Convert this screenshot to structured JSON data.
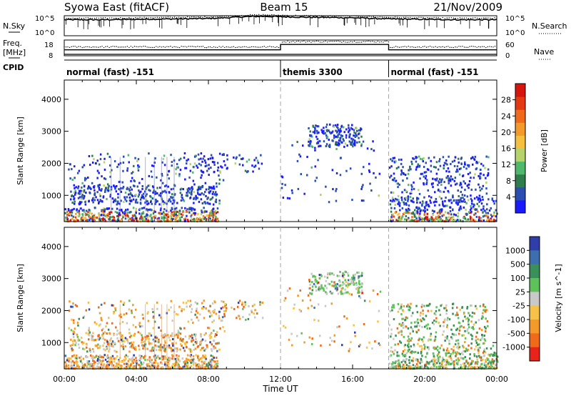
{
  "header": {
    "station": "Syowa East (fitACF)",
    "beam": "Beam 15",
    "date": "21/Nov/2009"
  },
  "left_labels": {
    "nsky": "N.Sky",
    "freq": "Freq.",
    "freq_unit": "[MHz]",
    "cpid": "CPID"
  },
  "right_labels": {
    "nsearch": "N.Search",
    "nave": "Nave"
  },
  "chart_data": [
    {
      "type": "line",
      "name": "noise-panel",
      "series": [
        {
          "name": "N.Sky"
        },
        {
          "name": "N.Search"
        }
      ],
      "y_ticks_left": [
        "10^5",
        "10^0"
      ],
      "y_ticks_right": [
        "10^5",
        "10^0"
      ],
      "profile_x_hours": [
        0,
        2,
        4,
        6,
        8,
        9,
        10,
        11,
        12,
        13,
        14,
        15,
        16,
        17,
        18,
        20,
        22,
        24
      ],
      "profile_level": [
        0.8,
        0.8,
        0.82,
        0.84,
        0.86,
        0.9,
        0.95,
        0.97,
        0.95,
        0.93,
        0.92,
        0.91,
        0.9,
        0.87,
        0.84,
        0.82,
        0.8,
        0.8
      ]
    },
    {
      "type": "line",
      "name": "frequency-panel",
      "series": [
        {
          "name": "Freq."
        },
        {
          "name": "Nave"
        }
      ],
      "y_ticks_left": [
        "18",
        "8"
      ],
      "y_ticks_right": [
        "60",
        "0"
      ],
      "freq_step_hours": [
        0,
        12,
        18,
        24
      ],
      "freq_step_level": [
        0.38,
        0.72,
        0.38
      ]
    },
    {
      "type": "table",
      "name": "cpid-panel",
      "segments": [
        {
          "start": 0,
          "end": 12,
          "label": "normal (fast) -151"
        },
        {
          "start": 12,
          "end": 18,
          "label": "themis 3300"
        },
        {
          "start": 18,
          "end": 24,
          "label": "normal (fast) -151"
        }
      ]
    },
    {
      "type": "heatmap",
      "name": "power",
      "ylabel": "Slant Range [km]",
      "yticks": [
        1000,
        2000,
        3000,
        4000
      ],
      "ylim": [
        180,
        4600
      ],
      "xlim": [
        0,
        24
      ],
      "colorbar_label": "Power [dB]",
      "colorbar_ticks": [
        4,
        8,
        12,
        16,
        20,
        24,
        28
      ],
      "colorbar_range": [
        0,
        32
      ],
      "colorbar_colors": [
        "#1a1aff",
        "#2a4fb0",
        "#2e7d4a",
        "#4fb86a",
        "#b5d36a",
        "#f5c040",
        "#f39a2a",
        "#ef6a1a",
        "#e43a12",
        "#d6150c"
      ]
    },
    {
      "type": "heatmap",
      "name": "velocity",
      "ylabel": "Slant Range [km]",
      "yticks": [
        1000,
        2000,
        3000,
        4000
      ],
      "ylim": [
        180,
        4600
      ],
      "xlim": [
        0,
        24
      ],
      "xticks": [
        "00:00",
        "04:00",
        "08:00",
        "12:00",
        "16:00",
        "20:00",
        "00:00"
      ],
      "xlabel": "Time UT",
      "colorbar_label": "Velocity [m s^-1]",
      "colorbar_ticks": [
        "1000",
        "500",
        "100",
        "25",
        "-25",
        "-100",
        "-500",
        "-1000"
      ],
      "colorbar_colors": [
        "#2f3ea8",
        "#3d6fb0",
        "#3b8f5a",
        "#5fc15a",
        "#c9c9c9",
        "#f6c34a",
        "#f39a2a",
        "#f06a1a",
        "#e8231a"
      ]
    }
  ]
}
